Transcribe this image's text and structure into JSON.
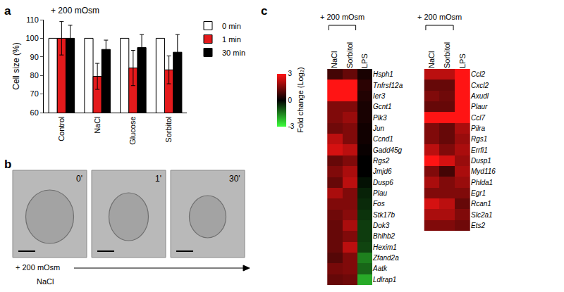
{
  "chart_data": [
    {
      "type": "bar",
      "panel": "a",
      "title": "+ 200 mOsm",
      "y_label": "Cell size (%)",
      "categories": [
        "Control",
        "NaCl",
        "Glucose",
        "Sorbitol"
      ],
      "series": [
        {
          "name": "0 min",
          "color": "#ffffff",
          "values": [
            100,
            100,
            100,
            100
          ]
        },
        {
          "name": "1 min",
          "color": "#e41a1c",
          "values": [
            100,
            79.5,
            84,
            83
          ],
          "errors": [
            9,
            7,
            9.5,
            7.5
          ]
        },
        {
          "name": "30 min",
          "color": "#000000",
          "values": [
            100,
            94,
            95,
            92.5
          ],
          "errors": [
            7,
            5,
            7,
            9.5
          ]
        }
      ],
      "ylim": [
        60,
        110
      ],
      "yticks": [
        60,
        70,
        80,
        90,
        100,
        110
      ],
      "legend": "right",
      "grid": false
    },
    {
      "type": "heatmap",
      "panel": "c",
      "group": {
        "label": "+ 200 mOsm",
        "columns": [
          "NaCl",
          "Sorbitol"
        ]
      },
      "categories": [
        "NaCl",
        "Sorbitol",
        "LPS"
      ],
      "rows": [
        "Hsph1",
        "Tnfrsf12a",
        "Ier3",
        "Gcnt1",
        "Plk3",
        "Jun",
        "Ccnd1",
        "Gadd45g",
        "Rgs2",
        "Jmjd6",
        "Dusp6",
        "Plau",
        "Fos",
        "Stk17b",
        "Dok3",
        "Bhlhb2",
        "Hexim1",
        "Zfand2a",
        "Aatk",
        "Ldlrap1"
      ],
      "cells": [
        [
          0.8,
          1.2,
          0.3
        ],
        [
          3,
          3,
          0.5
        ],
        [
          3,
          3,
          0.4
        ],
        [
          1.5,
          1.5,
          0.3
        ],
        [
          1.5,
          1.8,
          0.3
        ],
        [
          1.3,
          1.5,
          0.2
        ],
        [
          2.2,
          1.5,
          0.2
        ],
        [
          2.5,
          2.2,
          0.1
        ],
        [
          1.2,
          1.5,
          0
        ],
        [
          1.5,
          2,
          0
        ],
        [
          1.2,
          2.2,
          -0.2
        ],
        [
          2,
          1.5,
          -0.4
        ],
        [
          1.5,
          1.5,
          -0.5
        ],
        [
          1.3,
          1.6,
          -0.6
        ],
        [
          1.2,
          2,
          -0.7
        ],
        [
          1.2,
          1.5,
          -0.7
        ],
        [
          1.2,
          2.2,
          -0.8
        ],
        [
          1,
          1.5,
          -1.5
        ],
        [
          1.4,
          1.5,
          -1.2
        ],
        [
          1.2,
          1.3,
          -2
        ]
      ],
      "colorbar": {
        "title": "Fold change (Log₂)",
        "range": [
          -3,
          3
        ],
        "ticks": [
          3,
          0,
          -3
        ]
      }
    },
    {
      "type": "heatmap",
      "group": {
        "label": "+ 200 mOsm",
        "columns": [
          "NaCl",
          "Sorbitol"
        ]
      },
      "categories": [
        "NaCl",
        "Sorbitol",
        "LPS"
      ],
      "rows": [
        "Ccl2",
        "Cxcl2",
        "Axudl",
        "Plaur",
        "Ccl7",
        "Pilra",
        "Rgs1",
        "Errfi1",
        "Dusp1",
        "Myd116",
        "Phlda1",
        "Egr1",
        "Rcan1",
        "Slc2a1",
        "Ets2"
      ],
      "cells": [
        [
          2.2,
          2.2,
          3
        ],
        [
          1.2,
          1.2,
          3
        ],
        [
          1.5,
          1.3,
          3
        ],
        [
          1.2,
          1.2,
          3
        ],
        [
          3,
          3,
          3
        ],
        [
          1.5,
          1.2,
          2
        ],
        [
          1.5,
          1.2,
          1.8
        ],
        [
          2.2,
          1.5,
          2
        ],
        [
          3,
          2.5,
          1.8
        ],
        [
          1.5,
          0.8,
          2
        ],
        [
          2,
          1.5,
          1.8
        ],
        [
          1.5,
          1.5,
          1.5
        ],
        [
          2.5,
          2.2,
          1.2
        ],
        [
          2,
          2,
          1.5
        ],
        [
          1.5,
          1.5,
          1.3
        ]
      ]
    }
  ],
  "panel_b": {
    "panel": "b",
    "frames": [
      "0'",
      "1'",
      "30'"
    ],
    "treatment": "+ 200 mOsm",
    "salt": "NaCl"
  }
}
